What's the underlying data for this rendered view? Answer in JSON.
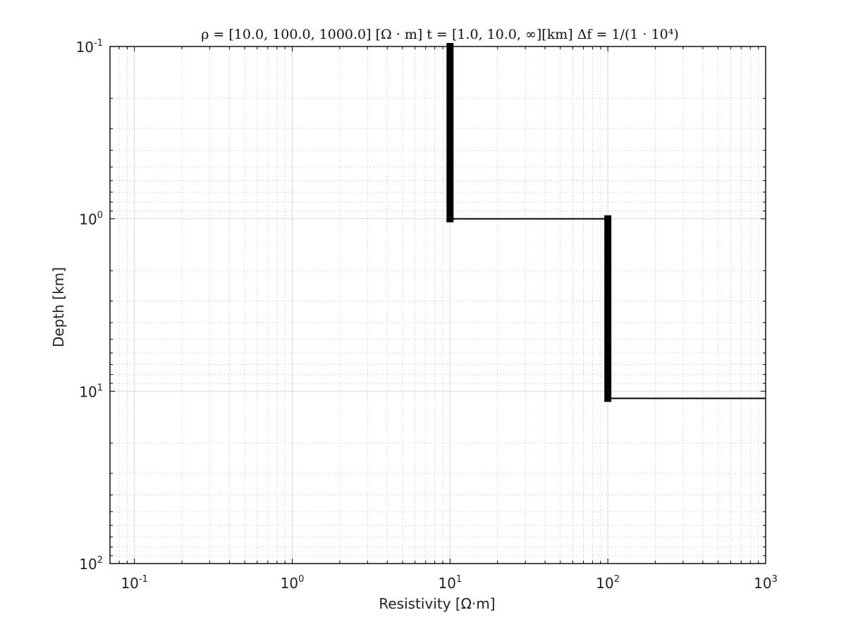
{
  "chart_data": {
    "type": "line",
    "title": "ρ = [10.0, 100.0, 1000.0] [Ω · m]    t = [1.0, 10.0, ∞][km]    Δf = 1/(1 · 10⁴)",
    "xlabel": "Resistivity [Ω·m]",
    "ylabel": "Depth [km]",
    "xscale": "log",
    "yscale": "log",
    "xlim": [
      0.07,
      1000
    ],
    "ylim": [
      100,
      0.1
    ],
    "y_inverted": true,
    "grid": true,
    "x_ticks": [
      {
        "base": "10",
        "exp": "-1",
        "value": 0.1
      },
      {
        "base": "10",
        "exp": "0",
        "value": 1
      },
      {
        "base": "10",
        "exp": "1",
        "value": 10
      },
      {
        "base": "10",
        "exp": "2",
        "value": 100
      },
      {
        "base": "10",
        "exp": "3",
        "value": 1000
      }
    ],
    "y_ticks": [
      {
        "base": "10",
        "exp": "-1",
        "value": 0.1
      },
      {
        "base": "10",
        "exp": "0",
        "value": 1
      },
      {
        "base": "10",
        "exp": "1",
        "value": 10
      },
      {
        "base": "10",
        "exp": "2",
        "value": 100
      }
    ],
    "series": [
      {
        "kind": "step-profile",
        "color": "#000000",
        "points": [
          {
            "x": 10,
            "y": 0.1
          },
          {
            "x": 10,
            "y": 1
          },
          {
            "x": 100,
            "y": 1
          },
          {
            "x": 100,
            "y": 11
          },
          {
            "x": 1000,
            "y": 11
          }
        ]
      }
    ]
  },
  "colors": {
    "line": "#000000",
    "major_grid": "#d9d9d9",
    "minor_grid": "#c8c8c8",
    "axes": "#000000"
  }
}
